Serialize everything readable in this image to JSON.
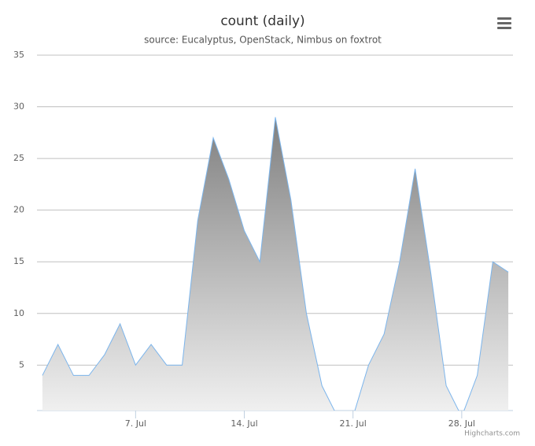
{
  "chart_data": {
    "type": "area",
    "title": "count (daily)",
    "subtitle": "source: Eucalyptus, OpenStack, Nimbus on foxtrot",
    "x": [
      1,
      2,
      3,
      4,
      5,
      6,
      7,
      8,
      9,
      10,
      11,
      12,
      13,
      14,
      15,
      16,
      17,
      18,
      19,
      20,
      21,
      22,
      23,
      24,
      25,
      26,
      27,
      28,
      29,
      30,
      31
    ],
    "series": [
      {
        "name": "count",
        "color": "#7cb5ec",
        "values": [
          4,
          7,
          4,
          4,
          6,
          9,
          5,
          7,
          5,
          5,
          19,
          27,
          23,
          18,
          15,
          29,
          21,
          10,
          3,
          0,
          0,
          5,
          8,
          15,
          24,
          14,
          3,
          0,
          4,
          15,
          14
        ]
      }
    ],
    "xlim": [
      0.65,
      31.3
    ],
    "xticks": [
      {
        "value": 7,
        "label": "7. Jul"
      },
      {
        "value": 14,
        "label": "14. Jul"
      },
      {
        "value": 21,
        "label": "21. Jul"
      },
      {
        "value": 28,
        "label": "28. Jul"
      }
    ],
    "ylim": [
      0.6,
      35
    ],
    "yticks": [
      5,
      10,
      15,
      20,
      25,
      30,
      35
    ],
    "grid": true,
    "credits": "Highcharts.com"
  }
}
